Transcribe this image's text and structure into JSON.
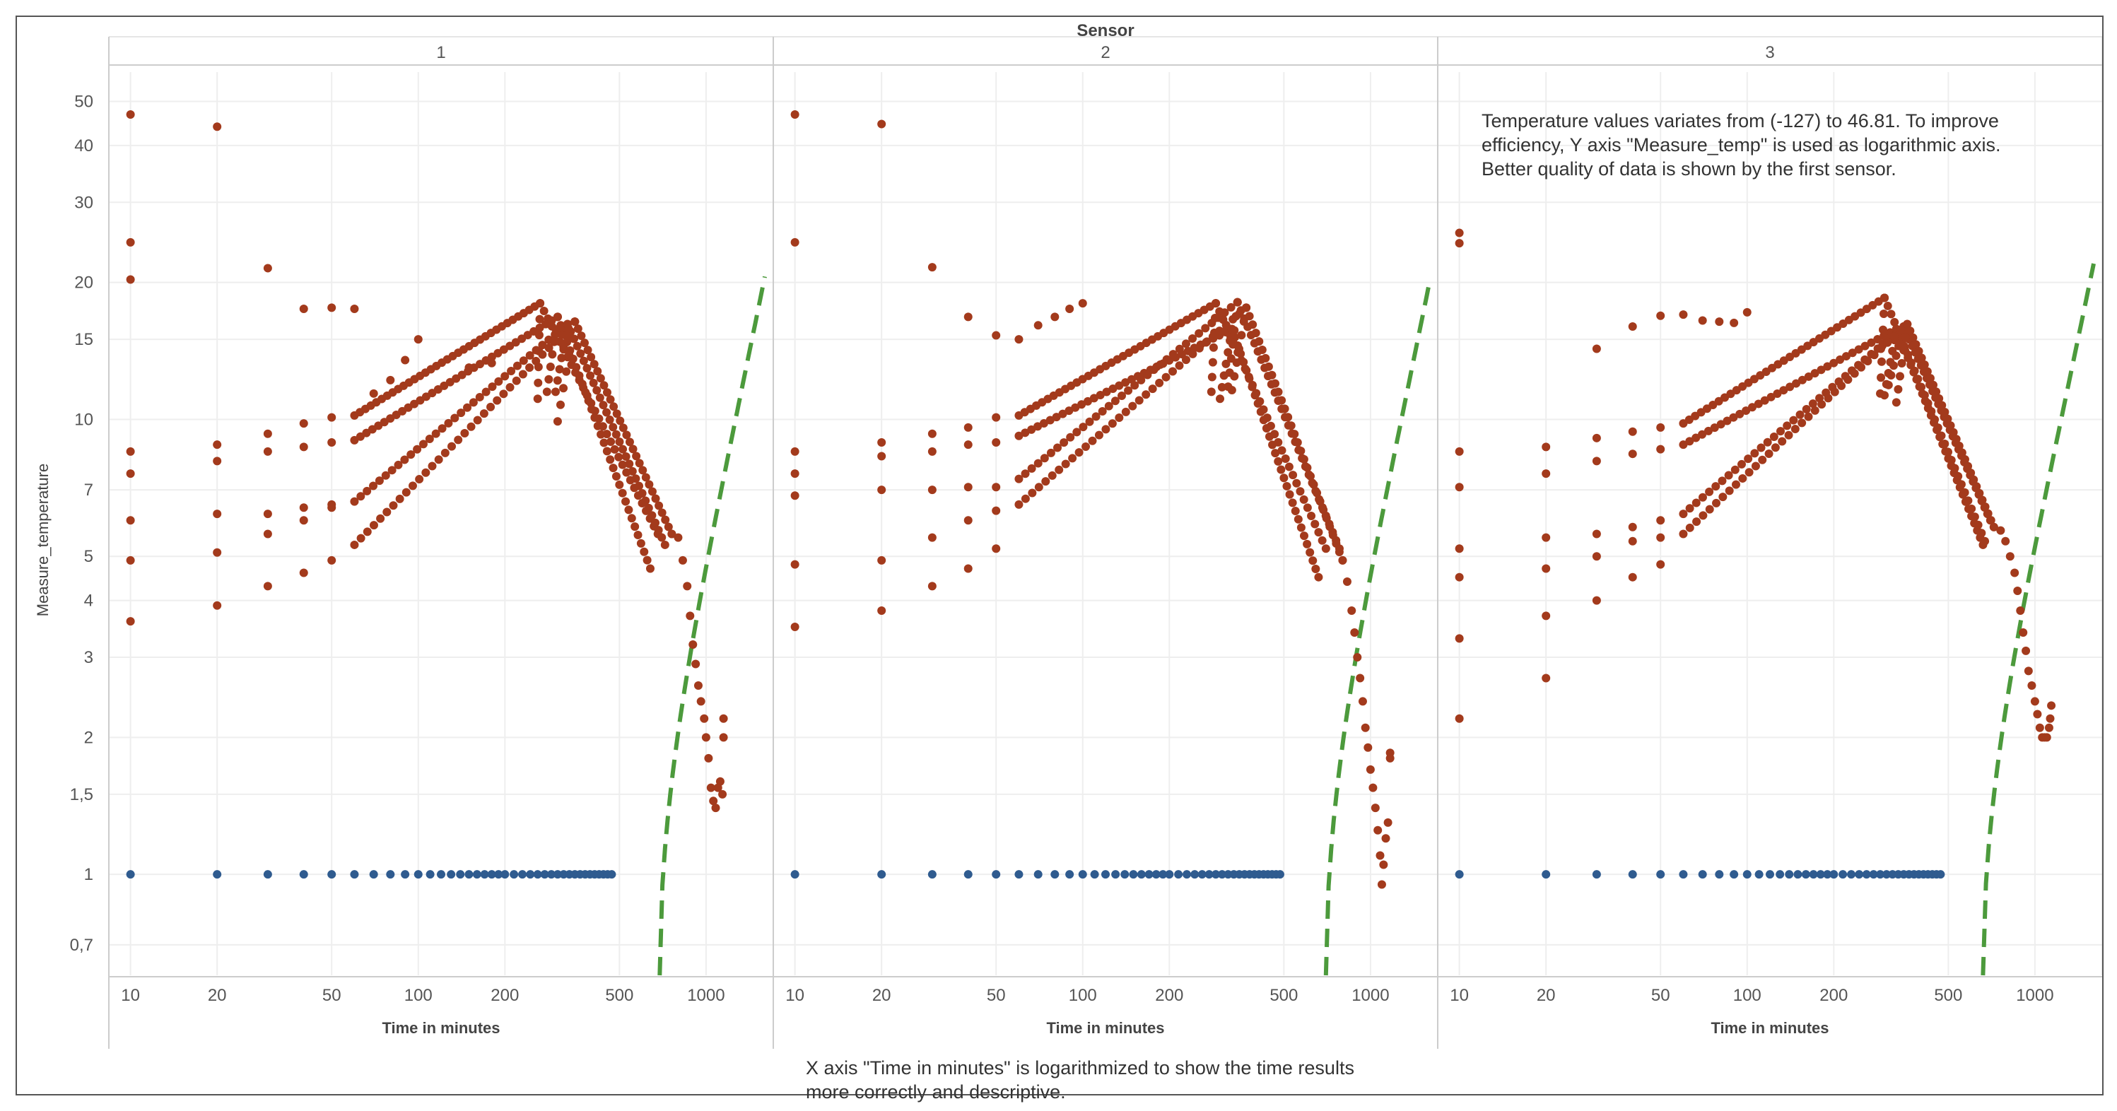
{
  "notes": {
    "y_axis_note": "Temperature  values variates from (-127) to 46.81. To improve\nefficiency, Y axis \"Measure_temp\" is used as logarithmic axis.\nBetter quality of data is shown by the first sensor.",
    "x_axis_note": "X axis \"Time in minutes\" is logarithmized to show the time results\nmore correctly and descriptive."
  },
  "chart_data": {
    "type": "scatter",
    "title": "Sensor",
    "xlabel": "Time in minutes",
    "ylabel": "Measure_temperature",
    "x_scale": "log",
    "y_scale": "log",
    "xlim": [
      9,
      1600
    ],
    "ylim": [
      0.6,
      58
    ],
    "x_ticks": [
      10,
      20,
      50,
      100,
      200,
      500,
      1000
    ],
    "x_tick_labels": [
      "10",
      "20",
      "50",
      "100",
      "200",
      "500",
      "1000"
    ],
    "y_ticks": [
      0.7,
      1,
      1.5,
      2,
      3,
      4,
      5,
      7,
      10,
      15,
      20,
      30,
      40,
      50
    ],
    "y_tick_labels": [
      "0,7",
      "1",
      "1,5",
      "2",
      "3",
      "4",
      "5",
      "7",
      "10",
      "15",
      "20",
      "30",
      "40",
      "50"
    ],
    "grid": true,
    "colors": {
      "temperature": "#a33a1c",
      "baseline": "#2f5b8f",
      "trend": "#4c9a3c",
      "grid": "#eeeeee",
      "axis": "#cccccc"
    },
    "panels": [
      {
        "sensor": "1",
        "early_points": [
          [
            10,
            46.8
          ],
          [
            10,
            24.5
          ],
          [
            10,
            20.3
          ],
          [
            10,
            8.5
          ],
          [
            10,
            7.6
          ],
          [
            10,
            6.0
          ],
          [
            10,
            4.9
          ],
          [
            10,
            3.6
          ],
          [
            20,
            44.0
          ],
          [
            20,
            8.8
          ],
          [
            20,
            8.1
          ],
          [
            20,
            6.2
          ],
          [
            20,
            5.1
          ],
          [
            20,
            3.9
          ],
          [
            30,
            21.5
          ],
          [
            30,
            9.3
          ],
          [
            30,
            8.5
          ],
          [
            30,
            6.2
          ],
          [
            30,
            5.6
          ],
          [
            30,
            4.3
          ],
          [
            40,
            17.5
          ],
          [
            40,
            9.8
          ],
          [
            40,
            8.7
          ],
          [
            40,
            6.4
          ],
          [
            40,
            6.0
          ],
          [
            40,
            4.6
          ],
          [
            50,
            17.6
          ],
          [
            50,
            10.1
          ],
          [
            50,
            8.9
          ],
          [
            50,
            6.5
          ],
          [
            50,
            6.4
          ],
          [
            50,
            4.9
          ],
          [
            60,
            17.5
          ]
        ],
        "series_starts": [
          [
            60,
            10.2
          ],
          [
            60,
            9.0
          ],
          [
            60,
            6.6
          ],
          [
            60,
            5.3
          ]
        ],
        "peaks": [
          [
            265,
            18.0
          ],
          [
            305,
            16.8
          ],
          [
            330,
            16.2
          ],
          [
            350,
            16.4
          ]
        ],
        "peak_ends": [
          [
            260,
            11.1
          ],
          [
            280,
            11.5
          ],
          [
            300,
            11.5
          ],
          [
            305,
            9.9
          ]
        ],
        "series_ends": [
          [
            680,
            5.6
          ],
          [
            640,
            4.7
          ],
          [
            720,
            5.3
          ],
          [
            760,
            5.6
          ]
        ],
        "extra_points": [
          [
            70,
            11.4
          ],
          [
            80,
            12.2
          ],
          [
            90,
            13.5
          ],
          [
            100,
            15.0
          ],
          [
            150,
            13.0
          ],
          [
            180,
            13.3
          ]
        ],
        "tail": [
          [
            760,
            5.6
          ],
          [
            800,
            5.5
          ],
          [
            830,
            4.9
          ],
          [
            860,
            4.3
          ],
          [
            880,
            3.7
          ],
          [
            900,
            3.2
          ],
          [
            920,
            2.9
          ],
          [
            940,
            2.6
          ],
          [
            960,
            2.4
          ],
          [
            985,
            2.2
          ],
          [
            1000,
            2.0
          ],
          [
            1020,
            1.8
          ],
          [
            1040,
            1.55
          ],
          [
            1060,
            1.45
          ],
          [
            1080,
            1.4
          ],
          [
            1100,
            1.55
          ],
          [
            1120,
            1.6
          ],
          [
            1140,
            1.5
          ],
          [
            1150,
            2.0
          ],
          [
            1150,
            2.2
          ]
        ],
        "baseline_end": 470,
        "curve_start": [
          690,
          0.6
        ],
        "curve_end": [
          1600,
          20.6
        ]
      },
      {
        "sensor": "2",
        "early_points": [
          [
            10,
            46.8
          ],
          [
            10,
            24.5
          ],
          [
            10,
            8.5
          ],
          [
            10,
            7.6
          ],
          [
            10,
            6.8
          ],
          [
            10,
            4.8
          ],
          [
            10,
            3.5
          ],
          [
            20,
            44.6
          ],
          [
            20,
            8.9
          ],
          [
            20,
            8.3
          ],
          [
            20,
            7.0
          ],
          [
            20,
            4.9
          ],
          [
            20,
            3.8
          ],
          [
            30,
            21.6
          ],
          [
            30,
            9.3
          ],
          [
            30,
            8.5
          ],
          [
            30,
            7.0
          ],
          [
            30,
            5.5
          ],
          [
            30,
            4.3
          ],
          [
            40,
            16.8
          ],
          [
            40,
            9.6
          ],
          [
            40,
            8.8
          ],
          [
            40,
            7.1
          ],
          [
            40,
            6.0
          ],
          [
            40,
            4.7
          ],
          [
            50,
            15.3
          ],
          [
            50,
            10.1
          ],
          [
            50,
            8.9
          ],
          [
            50,
            7.1
          ],
          [
            50,
            6.3
          ],
          [
            50,
            5.2
          ],
          [
            60,
            15.0
          ]
        ],
        "series_starts": [
          [
            60,
            10.2
          ],
          [
            60,
            9.2
          ],
          [
            60,
            7.4
          ],
          [
            60,
            6.5
          ]
        ],
        "peaks": [
          [
            290,
            18.0
          ],
          [
            330,
            15.8
          ],
          [
            345,
            18.1
          ],
          [
            370,
            17.6
          ]
        ],
        "peak_ends": [
          [
            280,
            11.5
          ],
          [
            300,
            11.1
          ],
          [
            320,
            11.8
          ],
          [
            330,
            11.6
          ]
        ],
        "series_ends": [
          [
            700,
            5.2
          ],
          [
            660,
            4.5
          ],
          [
            780,
            5.2
          ],
          [
            800,
            4.9
          ]
        ],
        "extra_points": [
          [
            70,
            16.1
          ],
          [
            80,
            16.8
          ],
          [
            90,
            17.5
          ],
          [
            100,
            18.0
          ]
        ],
        "tail": [
          [
            800,
            4.9
          ],
          [
            830,
            4.4
          ],
          [
            860,
            3.8
          ],
          [
            880,
            3.4
          ],
          [
            900,
            3.0
          ],
          [
            920,
            2.7
          ],
          [
            940,
            2.4
          ],
          [
            960,
            2.1
          ],
          [
            980,
            1.9
          ],
          [
            1000,
            1.7
          ],
          [
            1020,
            1.55
          ],
          [
            1040,
            1.4
          ],
          [
            1060,
            1.25
          ],
          [
            1080,
            1.1
          ],
          [
            1095,
            0.95
          ],
          [
            1110,
            1.05
          ],
          [
            1130,
            1.2
          ],
          [
            1150,
            1.3
          ],
          [
            1170,
            1.8
          ],
          [
            1170,
            1.85
          ]
        ],
        "baseline_end": 490,
        "curve_start": [
          700,
          0.6
        ],
        "curve_end": [
          1600,
          19.9
        ]
      },
      {
        "sensor": "3",
        "early_points": [
          [
            10,
            25.7
          ],
          [
            10,
            24.4
          ],
          [
            10,
            8.5
          ],
          [
            10,
            7.1
          ],
          [
            10,
            5.2
          ],
          [
            10,
            4.5
          ],
          [
            10,
            3.3
          ],
          [
            10,
            2.2
          ],
          [
            20,
            8.7
          ],
          [
            20,
            7.6
          ],
          [
            20,
            5.5
          ],
          [
            20,
            4.7
          ],
          [
            20,
            3.7
          ],
          [
            20,
            2.7
          ],
          [
            30,
            14.3
          ],
          [
            30,
            9.1
          ],
          [
            30,
            8.1
          ],
          [
            30,
            5.6
          ],
          [
            30,
            5.0
          ],
          [
            30,
            4.0
          ],
          [
            40,
            16.0
          ],
          [
            40,
            9.4
          ],
          [
            40,
            8.4
          ],
          [
            40,
            5.8
          ],
          [
            40,
            5.4
          ],
          [
            40,
            4.5
          ],
          [
            50,
            16.9
          ],
          [
            50,
            9.6
          ],
          [
            50,
            8.6
          ],
          [
            50,
            6.0
          ],
          [
            50,
            5.5
          ],
          [
            50,
            4.8
          ],
          [
            60,
            17.0
          ]
        ],
        "series_starts": [
          [
            60,
            9.8
          ],
          [
            60,
            8.8
          ],
          [
            60,
            6.2
          ],
          [
            60,
            5.6
          ]
        ],
        "peaks": [
          [
            300,
            18.5
          ],
          [
            330,
            15.8
          ],
          [
            350,
            16.0
          ],
          [
            360,
            16.2
          ]
        ],
        "peak_ends": [
          [
            290,
            11.4
          ],
          [
            300,
            11.3
          ],
          [
            310,
            11.9
          ],
          [
            330,
            10.9
          ]
        ],
        "series_ends": [
          [
            670,
            5.4
          ],
          [
            660,
            5.3
          ],
          [
            700,
            6.0
          ],
          [
            720,
            5.8
          ]
        ],
        "extra_points": [
          [
            70,
            16.5
          ],
          [
            80,
            16.4
          ],
          [
            90,
            16.3
          ],
          [
            100,
            17.2
          ]
        ],
        "tail": [
          [
            720,
            5.8
          ],
          [
            760,
            5.7
          ],
          [
            790,
            5.4
          ],
          [
            820,
            5.0
          ],
          [
            850,
            4.6
          ],
          [
            870,
            4.2
          ],
          [
            890,
            3.8
          ],
          [
            910,
            3.4
          ],
          [
            930,
            3.1
          ],
          [
            950,
            2.8
          ],
          [
            975,
            2.6
          ],
          [
            1000,
            2.4
          ],
          [
            1020,
            2.25
          ],
          [
            1040,
            2.1
          ],
          [
            1060,
            2.0
          ],
          [
            1080,
            2.0
          ],
          [
            1100,
            2.0
          ],
          [
            1120,
            2.1
          ],
          [
            1130,
            2.2
          ],
          [
            1140,
            2.35
          ]
        ],
        "baseline_end": 470,
        "curve_start": [
          660,
          0.6
        ],
        "curve_end": [
          1600,
          22.0
        ]
      }
    ]
  }
}
